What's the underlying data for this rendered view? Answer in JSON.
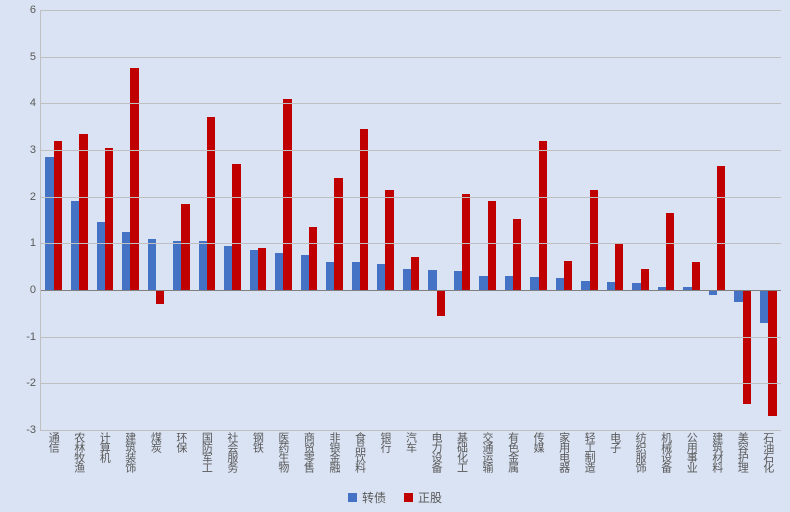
{
  "chart": {
    "type": "bar",
    "background_color": "#dae3f3",
    "grid_color": "#bfbfbf",
    "axis_color": "#808080",
    "ylim": [
      -3,
      6
    ],
    "ytick_step": 1,
    "yticks": [
      -3,
      -2,
      -1,
      0,
      1,
      2,
      3,
      4,
      5,
      6
    ],
    "label_fontsize": 11,
    "label_color": "#595959",
    "bar_group_gap": 0.35,
    "categories": [
      "通信",
      "农林牧渔",
      "计算机",
      "建筑装饰",
      "煤炭",
      "环保",
      "国防军工",
      "社会服务",
      "钢铁",
      "医药生物",
      "商贸零售",
      "非银金融",
      "食品饮料",
      "银行",
      "汽车",
      "电力设备",
      "基础化工",
      "交通运输",
      "有色金属",
      "传媒",
      "家用电器",
      "轻工制造",
      "电子",
      "纺织服饰",
      "机械设备",
      "公用事业",
      "建筑材料",
      "美容护理",
      "石油石化"
    ],
    "series": [
      {
        "name": "转债",
        "color": "#4472c4",
        "values": [
          2.85,
          1.9,
          1.45,
          1.25,
          1.1,
          1.05,
          1.05,
          0.95,
          0.85,
          0.8,
          0.75,
          0.6,
          0.6,
          0.55,
          0.45,
          0.43,
          0.4,
          0.3,
          0.3,
          0.28,
          0.25,
          0.2,
          0.18,
          0.15,
          0.07,
          0.07,
          -0.1,
          -0.25,
          -0.7
        ]
      },
      {
        "name": "正股",
        "color": "#c00000",
        "values": [
          3.2,
          3.35,
          3.05,
          4.75,
          -0.3,
          1.85,
          3.7,
          2.7,
          0.9,
          4.1,
          1.35,
          2.4,
          3.45,
          2.15,
          0.7,
          -0.55,
          2.05,
          1.9,
          1.52,
          3.2,
          0.62,
          2.15,
          1.0,
          0.45,
          1.65,
          0.6,
          2.65,
          -2.45,
          -2.7
        ]
      }
    ],
    "legend": {
      "items": [
        "转债",
        "正股"
      ],
      "fontsize": 12,
      "color": "#595959"
    }
  }
}
